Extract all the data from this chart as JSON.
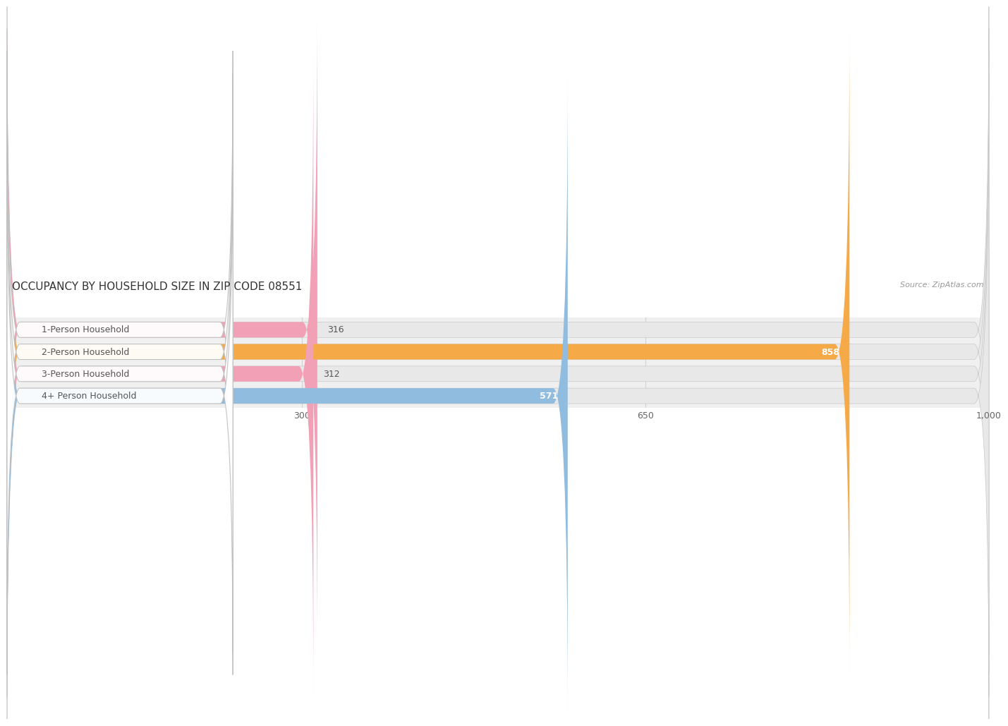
{
  "title": "OCCUPANCY BY HOUSEHOLD SIZE IN ZIP CODE 08551",
  "source": "Source: ZipAtlas.com",
  "categories": [
    "1-Person Household",
    "2-Person Household",
    "3-Person Household",
    "4+ Person Household"
  ],
  "values": [
    316,
    858,
    312,
    571
  ],
  "bar_colors": [
    "#f2a0b5",
    "#f5a947",
    "#f2a0b5",
    "#90bce0"
  ],
  "xlim": [
    0,
    1000
  ],
  "xticks": [
    300,
    650,
    1000
  ],
  "xtick_labels": [
    "300",
    "650",
    "1,000"
  ],
  "title_fontsize": 11,
  "source_fontsize": 8,
  "label_fontsize": 9,
  "value_fontsize": 9,
  "tick_fontsize": 9,
  "background_color": "#ffffff",
  "plot_bg_color": "#f0f0f0",
  "bar_bg_color": "#e8e8e8",
  "grid_color": "#d0d0d0",
  "label_box_color": "#ffffff",
  "bar_height": 0.7
}
